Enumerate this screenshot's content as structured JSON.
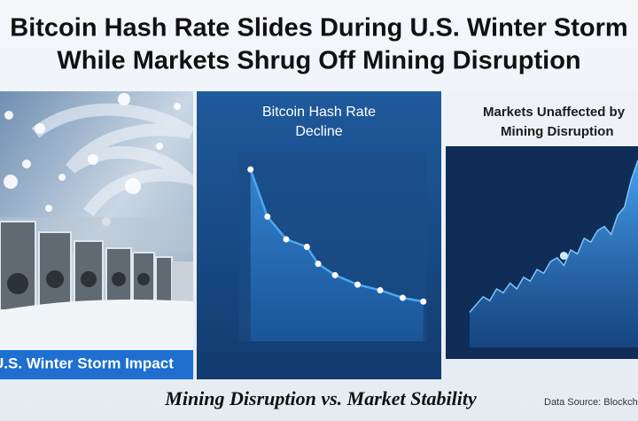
{
  "header": {
    "title_lines": [
      "Bitcoin Hash Rate Slides During U.S. Winter Storm",
      "While Markets Shrug Off Mining Disruption"
    ]
  },
  "left_panel": {
    "label": "U.S. Winter Storm Impact"
  },
  "chart_data": [
    {
      "type": "line",
      "title_lines": [
        "Bitcoin Hash Rate",
        "Decline"
      ],
      "color": "#4aa8f0",
      "x": [
        6,
        15,
        25,
        36,
        42,
        51,
        63,
        75,
        87,
        98
      ],
      "values": [
        91,
        66,
        54,
        50,
        41,
        35,
        30,
        27,
        23,
        21
      ],
      "xlim": [
        0,
        100
      ],
      "ylim": [
        0,
        100
      ]
    },
    {
      "type": "area",
      "title_lines": [
        "Markets Unaffected by",
        "Mining Disruption"
      ],
      "color": "#3c9be8",
      "x": [
        0,
        4,
        8,
        12,
        16,
        20,
        24,
        28,
        32,
        36,
        40,
        44,
        48,
        52,
        56,
        60,
        64,
        68,
        72,
        76,
        80,
        84,
        88,
        92,
        96,
        100
      ],
      "values": [
        18,
        22,
        26,
        24,
        30,
        28,
        33,
        30,
        36,
        34,
        40,
        38,
        44,
        46,
        42,
        50,
        48,
        56,
        54,
        60,
        62,
        58,
        68,
        72,
        86,
        96
      ],
      "points": [
        {
          "x": 56,
          "y": 47
        }
      ],
      "xlim": [
        0,
        100
      ],
      "ylim": [
        0,
        100
      ]
    }
  ],
  "footer": {
    "caption": "Mining Disruption vs. Market Stability",
    "source": "Data Source: Blockchain"
  }
}
